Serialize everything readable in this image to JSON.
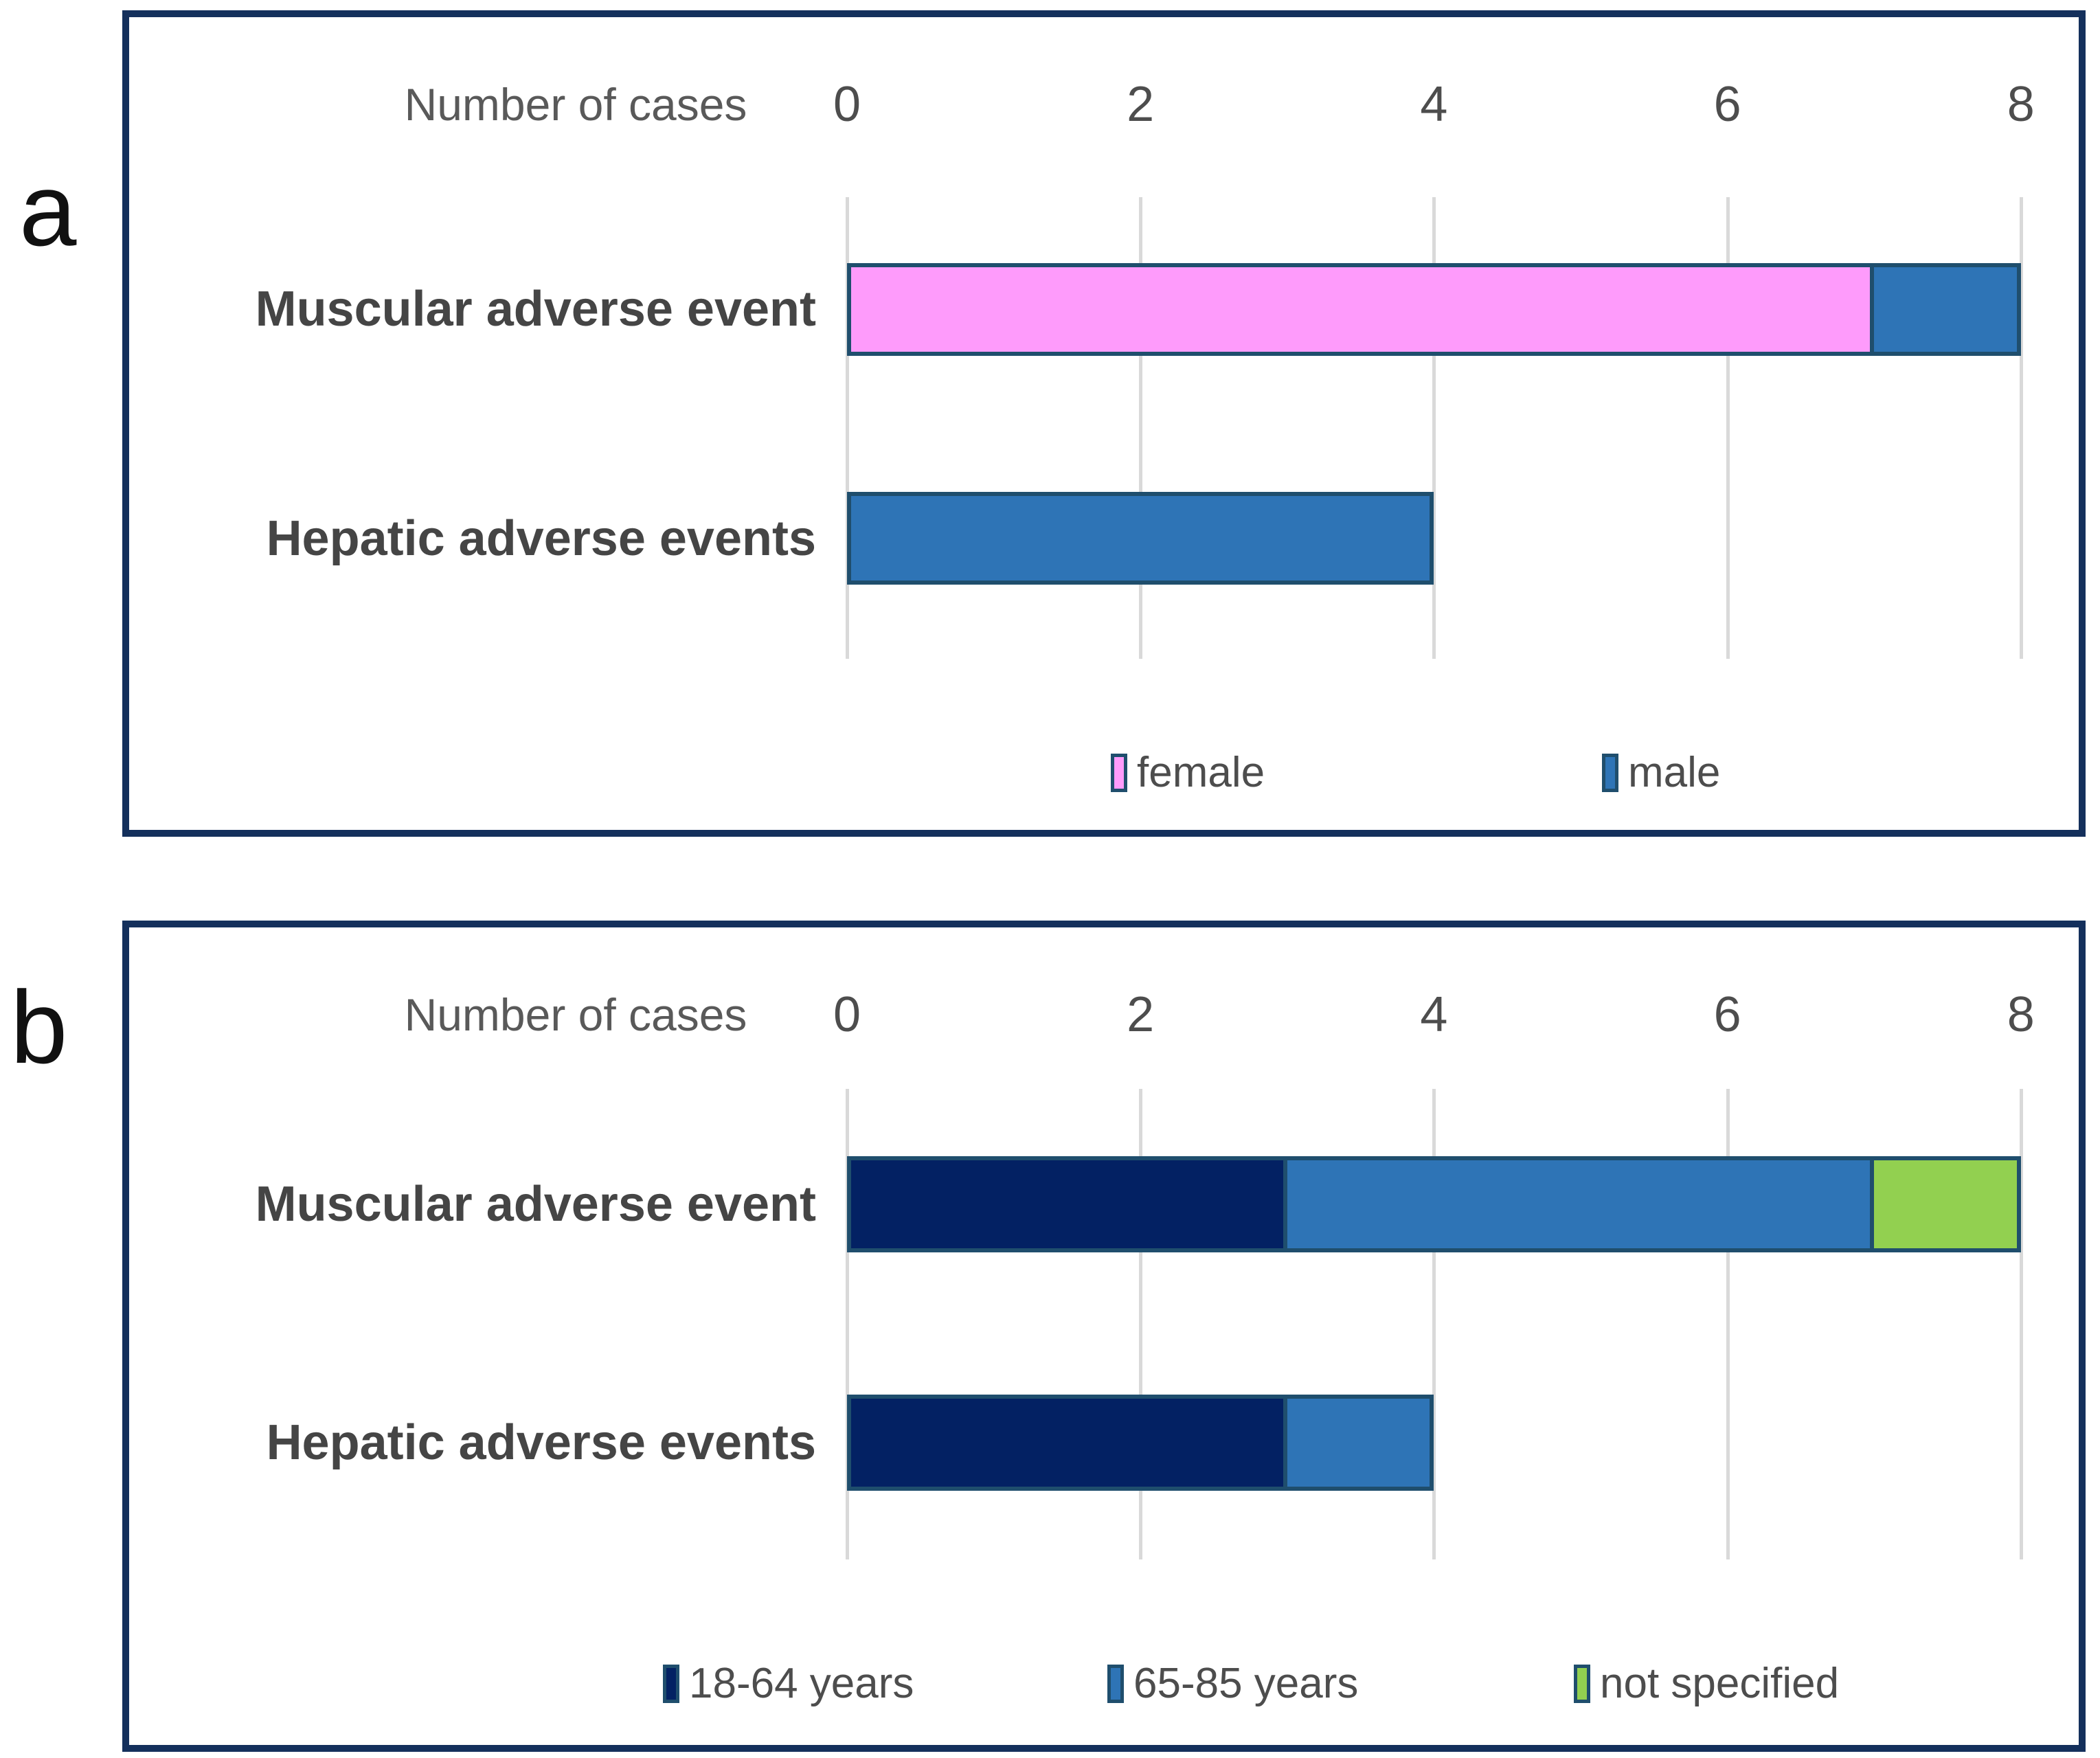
{
  "panels": [
    {
      "letter": "a"
    },
    {
      "letter": "b"
    }
  ],
  "colors": {
    "box_border": "#14305C",
    "bar_border": "#1F4E6D",
    "gridline": "#D9D9D9",
    "title_text": "#595959",
    "tick_text": "#4D4D4D",
    "category_text": "#454545",
    "legend_text": "#4D4D4D",
    "female_pink": "#FE9BFB",
    "male_blue": "#2E74B6",
    "age_navy": "#032163",
    "age_blue": "#2E74B6",
    "not_specified_green": "#92D050"
  },
  "chart_data": [
    {
      "type": "bar",
      "orientation": "horizontal-stacked",
      "title": "Number of cases",
      "categories": [
        "Muscular adverse event",
        "Hepatic adverse events"
      ],
      "x_ticks": [
        0,
        2,
        4,
        6,
        8
      ],
      "xlim": [
        0,
        8
      ],
      "gridlines": true,
      "legend_position": "bottom",
      "series": [
        {
          "name": "female",
          "color": "#FE9BFB",
          "values": [
            7,
            0
          ]
        },
        {
          "name": "male",
          "color": "#2E74B6",
          "values": [
            1,
            4
          ]
        }
      ]
    },
    {
      "type": "bar",
      "orientation": "horizontal-stacked",
      "title": "Number of cases",
      "categories": [
        "Muscular adverse event",
        "Hepatic adverse events"
      ],
      "x_ticks": [
        0,
        2,
        4,
        6,
        8
      ],
      "xlim": [
        0,
        8
      ],
      "gridlines": true,
      "legend_position": "bottom",
      "series": [
        {
          "name": "18-64 years",
          "color": "#032163",
          "values": [
            3,
            3
          ]
        },
        {
          "name": "65-85 years",
          "color": "#2E74B6",
          "values": [
            4,
            1
          ]
        },
        {
          "name": "not specified",
          "color": "#92D050",
          "values": [
            1,
            0
          ]
        }
      ]
    }
  ]
}
